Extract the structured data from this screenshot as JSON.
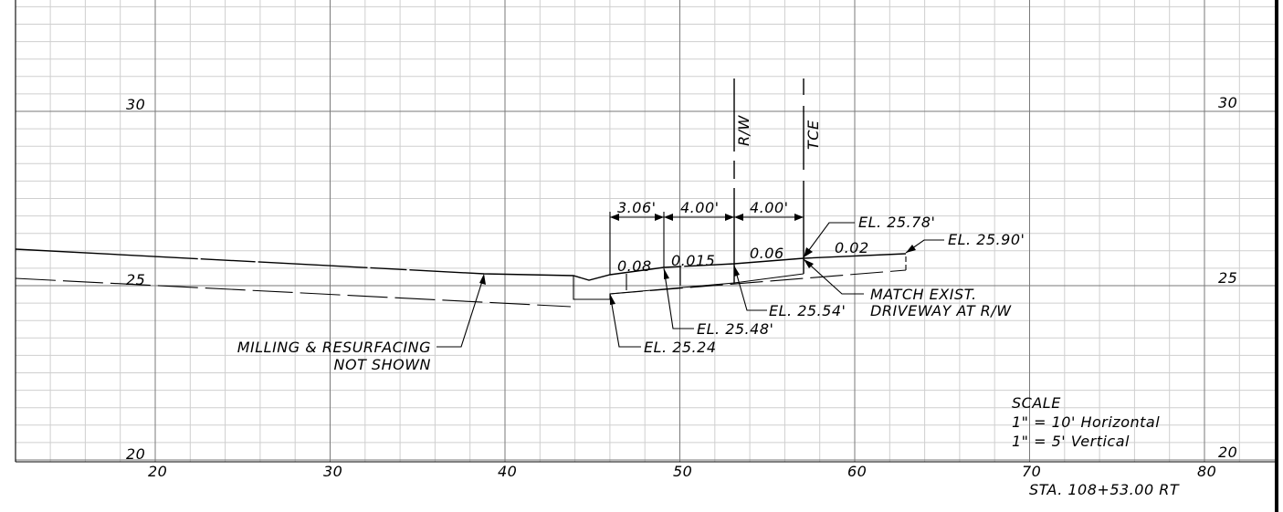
{
  "chart_data": {
    "type": "cross-section",
    "x_range": [
      13,
      83
    ],
    "y_range": [
      20,
      32
    ],
    "x_ticks": [
      "20",
      "30",
      "40",
      "50",
      "60",
      "70",
      "80"
    ],
    "y_ticks_left": [
      "30",
      "25",
      "20"
    ],
    "y_ticks_right": [
      "30",
      "25",
      "20"
    ],
    "existing_ground": [
      [
        13,
        25.2
      ],
      [
        44.5,
        24.9
      ]
    ],
    "proposed_surface": [
      [
        13,
        25.98
      ],
      [
        44.3,
        25.18
      ],
      [
        45,
        25.15
      ],
      [
        46.0,
        25.24
      ],
      [
        49.06,
        25.48
      ],
      [
        53.06,
        25.54
      ],
      [
        57.06,
        25.78
      ],
      [
        63.0,
        25.9
      ]
    ],
    "subgrade": [
      [
        46.0,
        24.98
      ],
      [
        63.0,
        25.43
      ]
    ],
    "offsets": {
      "rw_station": 53.06,
      "tce_station": 57.06
    },
    "dimensions": [
      "3.06'",
      "4.00'",
      "4.00'"
    ],
    "slopes": [
      "0.08",
      "0.015",
      "0.06",
      "0.02"
    ],
    "elevations": {
      "el_25_24": "EL. 25.24",
      "el_25_48": "EL. 25.48'",
      "el_25_54": "EL. 25.54'",
      "el_25_78": "EL. 25.78'",
      "el_25_90": "EL. 25.90'"
    },
    "annotations": {
      "rw": "R/W",
      "tce": "TCE",
      "match_1": "MATCH EXIST.",
      "match_2": "DRIVEWAY AT R/W",
      "milling_1": "MILLING & RESURFACING",
      "milling_2": "NOT SHOWN"
    },
    "scale": {
      "title": "SCALE",
      "horizontal": "1\" = 10' Horizontal",
      "vertical": "1\" = 5'  Vertical"
    },
    "station": "STA. 108+53.00 RT"
  }
}
